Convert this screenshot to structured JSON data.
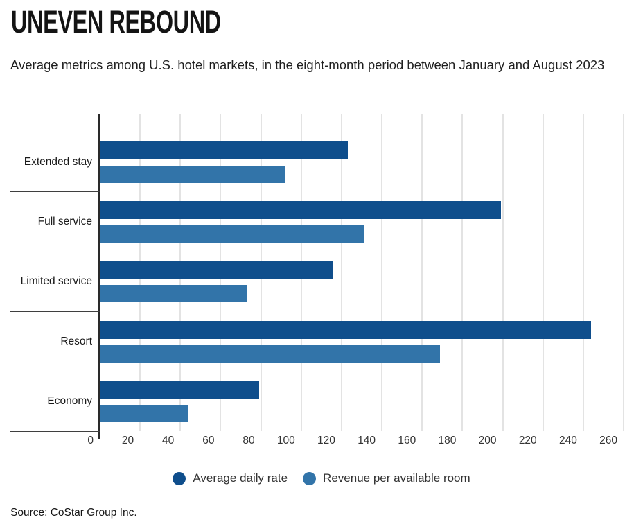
{
  "header": {
    "title": "UNEVEN REBOUND",
    "subtitle": "Average metrics among U.S. hotel markets, in the eight-month period between January and August 2023"
  },
  "legend": {
    "items": [
      {
        "label": "Average daily rate",
        "color": "#0f4e8c"
      },
      {
        "label": "Revenue per available room",
        "color": "#3274a9"
      }
    ]
  },
  "source": "Source: CoStar Group Inc.",
  "colors": {
    "adr_bar": "#0f4e8c",
    "revpar_bar": "#3274a9",
    "gridline": "#e3e3e3",
    "axis": "#2a2a2a",
    "divider": "#3f3f3f"
  },
  "chart_data": {
    "type": "bar",
    "orientation": "horizontal",
    "title": "UNEVEN REBOUND",
    "subtitle": "Average metrics among U.S. hotel markets, in the eight-month period between January and August 2023",
    "categories": [
      "Extended stay",
      "Full service",
      "Limited service",
      "Resort",
      "Economy"
    ],
    "series": [
      {
        "name": "Average daily rate",
        "color": "#0f4e8c",
        "values": [
          123,
          199,
          116,
          244,
          79
        ]
      },
      {
        "name": "Revenue per available room",
        "color": "#3274a9",
        "values": [
          92,
          131,
          73,
          169,
          44
        ]
      }
    ],
    "xlim": [
      0,
      260
    ],
    "x_tick_step": 20,
    "grid": "vertical",
    "legend_position": "bottom",
    "source_note": "Source: CoStar Group Inc."
  }
}
